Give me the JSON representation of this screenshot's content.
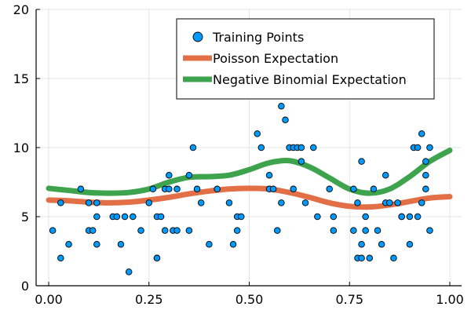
{
  "chart_data": {
    "type": "scatter",
    "xlim": [
      0.0,
      1.0
    ],
    "ylim": [
      0,
      20
    ],
    "xticks": [
      0.0,
      0.25,
      0.5,
      0.75,
      1.0
    ],
    "xtick_labels": [
      "0.00",
      "0.25",
      "0.50",
      "0.75",
      "1.00"
    ],
    "yticks": [
      0,
      5,
      10,
      15,
      20
    ],
    "ytick_labels": [
      "0",
      "5",
      "10",
      "15",
      "20"
    ],
    "grid": true,
    "legend_position": "top-right",
    "series": [
      {
        "name": "Training Points",
        "kind": "scatter",
        "color": "#009AFA",
        "points": [
          [
            0.01,
            4
          ],
          [
            0.03,
            2
          ],
          [
            0.03,
            6
          ],
          [
            0.05,
            3
          ],
          [
            0.08,
            7
          ],
          [
            0.1,
            4
          ],
          [
            0.1,
            6
          ],
          [
            0.11,
            4
          ],
          [
            0.12,
            5
          ],
          [
            0.12,
            6
          ],
          [
            0.12,
            3
          ],
          [
            0.16,
            5
          ],
          [
            0.17,
            5
          ],
          [
            0.18,
            3
          ],
          [
            0.19,
            5
          ],
          [
            0.2,
            1
          ],
          [
            0.21,
            5
          ],
          [
            0.23,
            4
          ],
          [
            0.25,
            6
          ],
          [
            0.26,
            7
          ],
          [
            0.27,
            2
          ],
          [
            0.27,
            5
          ],
          [
            0.27,
            2
          ],
          [
            0.28,
            5
          ],
          [
            0.29,
            4
          ],
          [
            0.29,
            7
          ],
          [
            0.3,
            8
          ],
          [
            0.3,
            7
          ],
          [
            0.31,
            4
          ],
          [
            0.32,
            7
          ],
          [
            0.32,
            4
          ],
          [
            0.35,
            4
          ],
          [
            0.35,
            8
          ],
          [
            0.36,
            10
          ],
          [
            0.37,
            7
          ],
          [
            0.38,
            6
          ],
          [
            0.4,
            3
          ],
          [
            0.42,
            7
          ],
          [
            0.45,
            6
          ],
          [
            0.46,
            3
          ],
          [
            0.47,
            4
          ],
          [
            0.47,
            5
          ],
          [
            0.48,
            5
          ],
          [
            0.52,
            11
          ],
          [
            0.53,
            10
          ],
          [
            0.55,
            8
          ],
          [
            0.55,
            7
          ],
          [
            0.56,
            7
          ],
          [
            0.57,
            4
          ],
          [
            0.58,
            6
          ],
          [
            0.58,
            13
          ],
          [
            0.59,
            12
          ],
          [
            0.6,
            10
          ],
          [
            0.61,
            10
          ],
          [
            0.61,
            7
          ],
          [
            0.62,
            10
          ],
          [
            0.63,
            9
          ],
          [
            0.63,
            10
          ],
          [
            0.64,
            6
          ],
          [
            0.66,
            10
          ],
          [
            0.67,
            5
          ],
          [
            0.7,
            7
          ],
          [
            0.71,
            4
          ],
          [
            0.71,
            5
          ],
          [
            0.76,
            7
          ],
          [
            0.76,
            4
          ],
          [
            0.77,
            2
          ],
          [
            0.77,
            6
          ],
          [
            0.78,
            9
          ],
          [
            0.78,
            2
          ],
          [
            0.78,
            3
          ],
          [
            0.79,
            4
          ],
          [
            0.79,
            5
          ],
          [
            0.8,
            2
          ],
          [
            0.81,
            7
          ],
          [
            0.82,
            4
          ],
          [
            0.83,
            3
          ],
          [
            0.84,
            6
          ],
          [
            0.84,
            8
          ],
          [
            0.85,
            6
          ],
          [
            0.86,
            2
          ],
          [
            0.87,
            6
          ],
          [
            0.88,
            5
          ],
          [
            0.88,
            5
          ],
          [
            0.9,
            3
          ],
          [
            0.9,
            5
          ],
          [
            0.91,
            10
          ],
          [
            0.92,
            10
          ],
          [
            0.92,
            5
          ],
          [
            0.93,
            11
          ],
          [
            0.93,
            6
          ],
          [
            0.94,
            9
          ],
          [
            0.94,
            8
          ],
          [
            0.94,
            7
          ],
          [
            0.95,
            10
          ],
          [
            0.95,
            4
          ]
        ]
      },
      {
        "name": "Poisson Expectation",
        "kind": "line",
        "color": "#E26F46",
        "points": [
          [
            0.0,
            6.2
          ],
          [
            0.05,
            6.15
          ],
          [
            0.1,
            6.05
          ],
          [
            0.15,
            6.0
          ],
          [
            0.2,
            6.05
          ],
          [
            0.25,
            6.2
          ],
          [
            0.3,
            6.4
          ],
          [
            0.35,
            6.65
          ],
          [
            0.4,
            6.85
          ],
          [
            0.45,
            7.0
          ],
          [
            0.5,
            7.05
          ],
          [
            0.55,
            7.0
          ],
          [
            0.6,
            6.75
          ],
          [
            0.65,
            6.4
          ],
          [
            0.7,
            6.0
          ],
          [
            0.75,
            5.75
          ],
          [
            0.8,
            5.7
          ],
          [
            0.85,
            5.85
          ],
          [
            0.9,
            6.1
          ],
          [
            0.95,
            6.35
          ],
          [
            1.0,
            6.45
          ]
        ]
      },
      {
        "name": "Negative Binomial Expectation",
        "kind": "line",
        "color": "#3DA44D",
        "points": [
          [
            0.0,
            7.05
          ],
          [
            0.05,
            6.9
          ],
          [
            0.1,
            6.75
          ],
          [
            0.15,
            6.7
          ],
          [
            0.2,
            6.75
          ],
          [
            0.25,
            7.0
          ],
          [
            0.3,
            7.5
          ],
          [
            0.35,
            7.85
          ],
          [
            0.4,
            7.9
          ],
          [
            0.45,
            8.0
          ],
          [
            0.5,
            8.4
          ],
          [
            0.55,
            8.9
          ],
          [
            0.6,
            9.05
          ],
          [
            0.65,
            8.6
          ],
          [
            0.7,
            7.8
          ],
          [
            0.75,
            7.0
          ],
          [
            0.8,
            6.7
          ],
          [
            0.85,
            7.0
          ],
          [
            0.9,
            7.9
          ],
          [
            0.95,
            9.0
          ],
          [
            1.0,
            9.8
          ]
        ]
      }
    ]
  }
}
